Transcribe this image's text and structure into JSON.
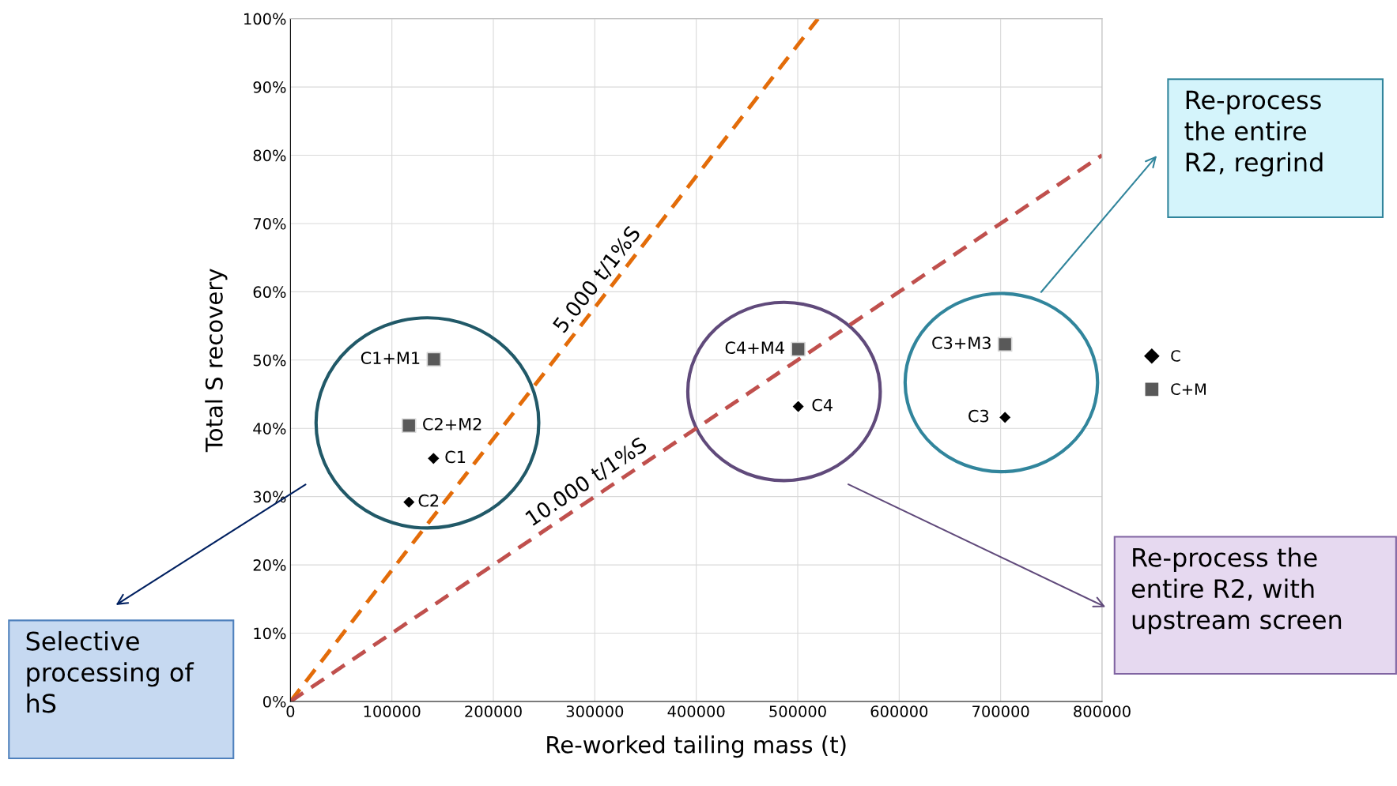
{
  "chart_data": {
    "type": "scatter",
    "xlabel": "Re-worked tailing mass (t)",
    "ylabel": "Total S recovery",
    "xlim": [
      0,
      800000
    ],
    "xticks": [
      0,
      100000,
      200000,
      300000,
      400000,
      500000,
      600000,
      700000,
      800000
    ],
    "ylim": [
      0,
      100
    ],
    "yticks": [
      {
        "value": 0,
        "label": "0%"
      },
      {
        "value": 10,
        "label": "10%"
      },
      {
        "value": 20,
        "label": "20%"
      },
      {
        "value": 30,
        "label": "30%"
      },
      {
        "value": 40,
        "label": "40%"
      },
      {
        "value": 50,
        "label": "50%"
      },
      {
        "value": 60,
        "label": "60%"
      },
      {
        "value": 70,
        "label": "70%"
      },
      {
        "value": 80,
        "label": "80%"
      },
      {
        "value": 90,
        "label": "90%"
      },
      {
        "value": 100,
        "label": "100%"
      }
    ],
    "grid": true,
    "legend": "right",
    "series": [
      {
        "type": "line",
        "color": "#e36c09",
        "line_style": "dashed",
        "marker": "none",
        "x": [
          0,
          520000
        ],
        "values": [
          0,
          100
        ]
      },
      {
        "type": "line",
        "color": "#c0504d",
        "line_style": "dashed",
        "marker": "none",
        "x": [
          0,
          800000
        ],
        "values": [
          0,
          80
        ]
      },
      {
        "name": "C",
        "color": "#000000",
        "marker": "diamond",
        "x": [
          141000,
          116800,
          500500,
          704300
        ],
        "values": [
          35.6,
          29.2,
          43.2,
          41.6
        ]
      },
      {
        "name": "C+M",
        "color": "#595959",
        "marker": "square",
        "x": [
          141400,
          116800,
          500500,
          704300
        ],
        "values": [
          50.1,
          40.4,
          51.6,
          52.3
        ]
      }
    ],
    "annotations": [
      {
        "text": "C1+M1",
        "x": 141400,
        "y": 50.1
      },
      {
        "text": "C2+M2",
        "x": 116800,
        "y": 40.4
      },
      {
        "text": "C1",
        "x": 141000,
        "y": 35.6
      },
      {
        "text": "C2",
        "x": 116800,
        "y": 29.2
      },
      {
        "text": "C4+M4",
        "x": 500500,
        "y": 51.6
      },
      {
        "text": "C4",
        "x": 500500,
        "y": 43.2
      },
      {
        "text": "C3+M3",
        "x": 704300,
        "y": 52.3
      },
      {
        "text": "C3",
        "x": 704300,
        "y": 41.6
      },
      {
        "text": "5.000 t/1%S",
        "x": 310900,
        "y": 59.8
      },
      {
        "text": "10.000 t/1%S",
        "x": 297700,
        "y": 29.8
      },
      "Selective\nprocessing of\nhS",
      "Re-process\nthe entire\nR2, regrind",
      "Re-process the\nentire R2, with\nupstream screen"
    ]
  }
}
